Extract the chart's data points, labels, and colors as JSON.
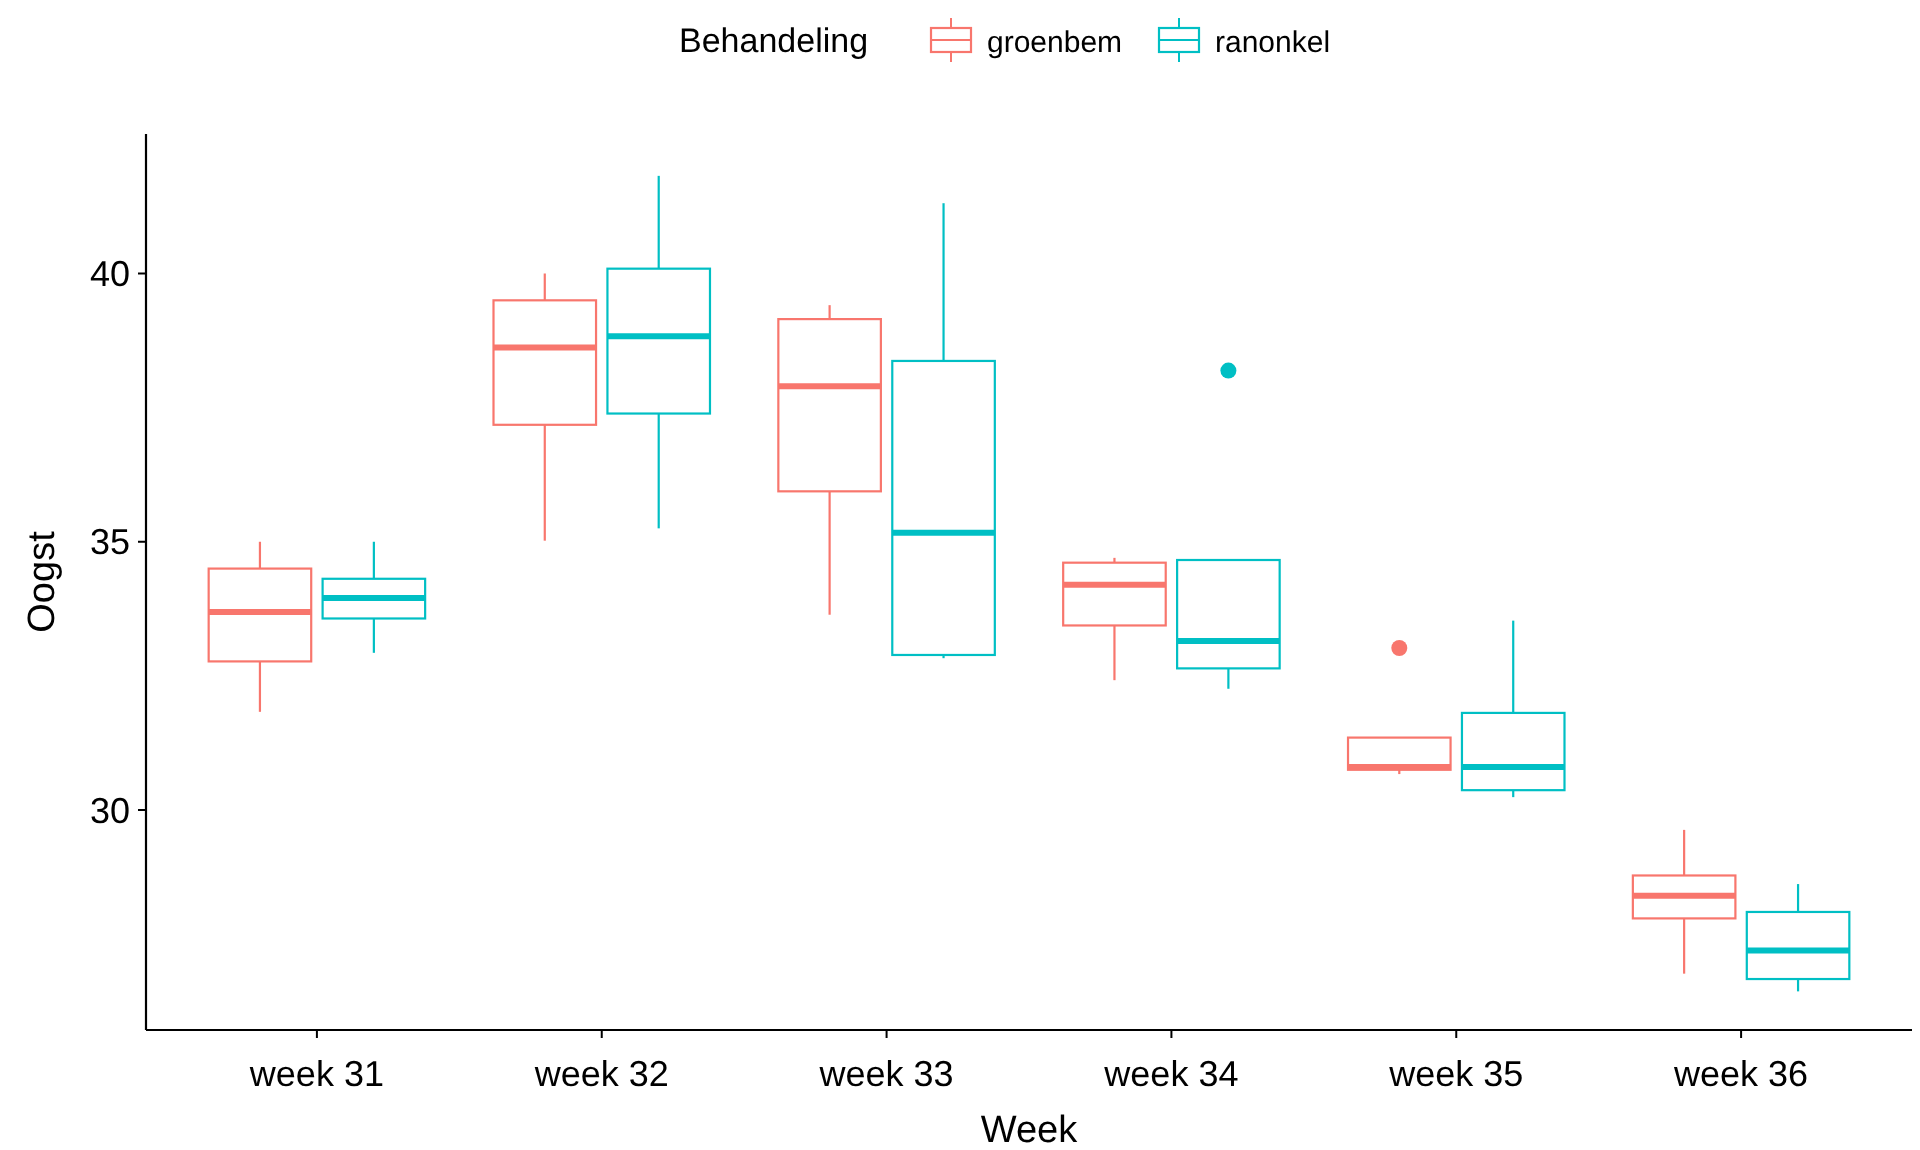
{
  "chart_data": {
    "type": "box",
    "xlabel": "Week",
    "ylabel": "Oogst",
    "legend_title": "Behandeling",
    "legend": "top",
    "grid": false,
    "categories": [
      "week 31",
      "week 32",
      "week 33",
      "week 34",
      "week 35",
      "week 36"
    ],
    "ylim": [
      25.9,
      42.6
    ],
    "yticks": [
      30,
      35,
      40
    ],
    "series": [
      {
        "name": "groenbem",
        "color": "#f8766d",
        "boxes": [
          {
            "low": 31.83,
            "q1": 32.77,
            "median": 33.69,
            "q3": 34.5,
            "high": 35.0
          },
          {
            "low": 35.02,
            "q1": 37.18,
            "median": 38.62,
            "q3": 39.5,
            "high": 40.0
          },
          {
            "low": 33.64,
            "q1": 35.94,
            "median": 37.9,
            "q3": 39.15,
            "high": 39.41
          },
          {
            "low": 32.42,
            "q1": 33.44,
            "median": 34.2,
            "q3": 34.61,
            "high": 34.7
          },
          {
            "low": 30.67,
            "q1": 30.75,
            "median": 30.8,
            "q3": 31.35,
            "high": 31.35,
            "outliers": [
              33.02
            ]
          },
          {
            "low": 26.95,
            "q1": 27.98,
            "median": 28.4,
            "q3": 28.78,
            "high": 29.63
          }
        ]
      },
      {
        "name": "ranonkel",
        "color": "#00bfc4",
        "boxes": [
          {
            "low": 32.93,
            "q1": 33.57,
            "median": 33.95,
            "q3": 34.31,
            "high": 35.0
          },
          {
            "low": 35.25,
            "q1": 37.39,
            "median": 38.83,
            "q3": 40.09,
            "high": 41.82
          },
          {
            "low": 32.83,
            "q1": 32.89,
            "median": 35.17,
            "q3": 38.37,
            "high": 41.31
          },
          {
            "low": 32.26,
            "q1": 32.64,
            "median": 33.15,
            "q3": 34.66,
            "high": 34.66,
            "outliers": [
              38.19
            ]
          },
          {
            "low": 30.24,
            "q1": 30.37,
            "median": 30.8,
            "q3": 31.81,
            "high": 33.53
          },
          {
            "low": 26.62,
            "q1": 26.85,
            "median": 27.38,
            "q3": 28.1,
            "high": 28.62
          }
        ]
      }
    ]
  }
}
